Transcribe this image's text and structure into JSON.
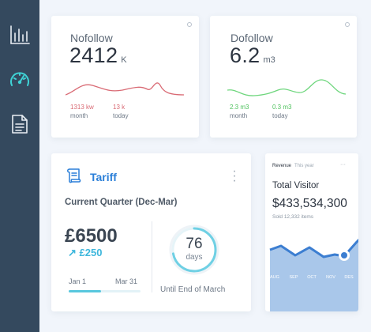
{
  "sidebar": {
    "items": [
      {
        "icon": "bar-chart-icon",
        "active": false
      },
      {
        "icon": "speedometer-icon",
        "active": true
      },
      {
        "icon": "document-icon",
        "active": false
      }
    ]
  },
  "colors": {
    "sidebar_bg": "#34495e",
    "active_icon": "#3fd2d5",
    "inactive_icon": "#e9eef3",
    "nofollow_line": "#d96a74",
    "dofollow_line": "#6ed67d",
    "accent_blue": "#2b7fd8",
    "area_fill": "#a9c7ea",
    "area_line": "#3c7ed1"
  },
  "nofollow": {
    "title": "Nofollow",
    "value": "2412",
    "unit": "K",
    "stats": [
      {
        "value": "1313 kw",
        "label": "month"
      },
      {
        "value": "13 k",
        "label": "today"
      }
    ]
  },
  "dofollow": {
    "title": "Dofollow",
    "value": "6.2",
    "unit": "m3",
    "stats": [
      {
        "value": "2.3 m3",
        "label": "month"
      },
      {
        "value": "0.3 m3",
        "label": "today"
      }
    ]
  },
  "tariff": {
    "title": "Tariff",
    "quarter": "Current Quarter (Dec-Mar)",
    "amount": "£6500",
    "delta": "↗ £250",
    "start_date": "Jan 1",
    "end_date": "Mar 31",
    "progress": 0.45,
    "days_value": "76",
    "days_label": "days",
    "days_fraction": 0.72,
    "until_text": "Until End of March"
  },
  "visitor": {
    "tabs": [
      {
        "label": "Revenue",
        "active": true
      },
      {
        "label": "This year",
        "active": false
      }
    ],
    "menu": "···",
    "title": "Total Visitor",
    "value": "$433,534,300",
    "sub": "Sold 12,332 items",
    "months": [
      "AUG",
      "SEP",
      "OCT",
      "NOV",
      "DES"
    ]
  }
}
